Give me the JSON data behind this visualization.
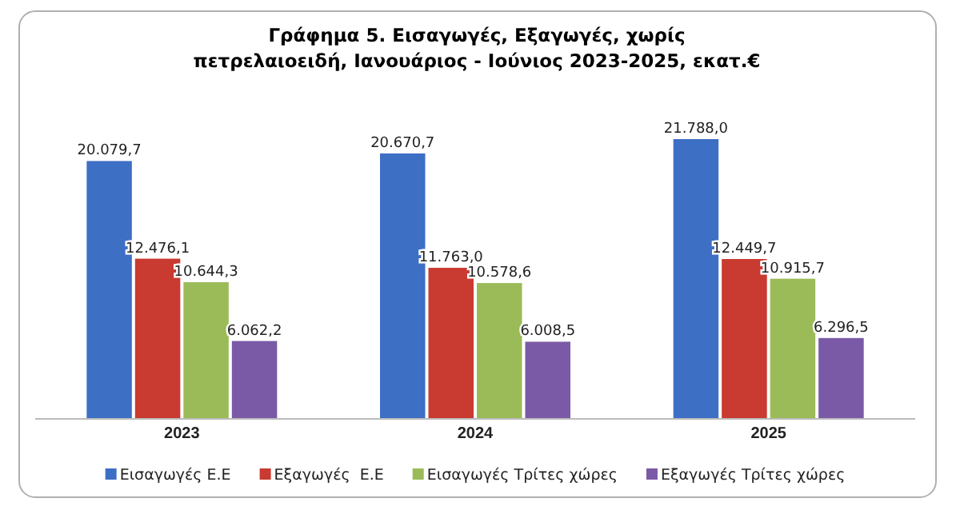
{
  "chart_data": {
    "type": "bar",
    "title": "Γράφημα 5. Εισαγωγές, Εξαγωγές, χωρίς\nπετρελαιοειδή, Ιανουάριος - Ιούνιος 2023-2025, εκατ.€",
    "categories": [
      "2023",
      "2024",
      "2025"
    ],
    "series": [
      {
        "name": "Εισαγωγές Ε.Ε",
        "color": "#3d6fc4",
        "values": [
          20079.7,
          20670.7,
          21788.0
        ],
        "value_labels": [
          "20.079,7",
          "20.670,7",
          "21.788,0"
        ]
      },
      {
        "name": "Εξαγωγές  Ε.Ε",
        "color": "#c93a30",
        "values": [
          12476.1,
          11763.0,
          12449.7
        ],
        "value_labels": [
          "12.476,1",
          "11.763,0",
          "12.449,7"
        ]
      },
      {
        "name": "Εισαγωγές Τρίτες χώρες",
        "color": "#9bbb59",
        "values": [
          10644.3,
          10578.6,
          10915.7
        ],
        "value_labels": [
          "10.644,3",
          "10.578,6",
          "10.915,7"
        ]
      },
      {
        "name": "Εξαγωγές Τρίτες χώρες",
        "color": "#7a5aa6",
        "values": [
          6062.2,
          6008.5,
          6296.5
        ],
        "value_labels": [
          "6.062,2",
          "6.008,5",
          "6.296,5"
        ]
      }
    ],
    "legend": "bottom"
  }
}
